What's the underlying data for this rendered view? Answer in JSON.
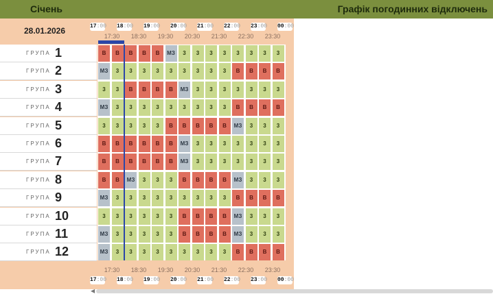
{
  "header": {
    "month": "Січень",
    "title": "Графік погодинних відключень"
  },
  "date": "28.01.2026",
  "hours": [
    {
      "h": "17",
      "m": ":00"
    },
    {
      "h": "18",
      "m": ":00"
    },
    {
      "h": "19",
      "m": ":00"
    },
    {
      "h": "20",
      "m": ":00"
    },
    {
      "h": "21",
      "m": ":00"
    },
    {
      "h": "22",
      "m": ":00"
    },
    {
      "h": "23",
      "m": ":00"
    },
    {
      "h": "00",
      "m": ":00"
    }
  ],
  "half_hours": [
    "17:30",
    "18:30",
    "19:30",
    "20:30",
    "21:30",
    "22:30",
    "23:30"
  ],
  "group_word": "ГРУПА",
  "groups": [
    {
      "num": "1",
      "cells": [
        "В",
        "В",
        "В",
        "В",
        "В",
        "МЗ",
        "3",
        "3",
        "3",
        "3",
        "3",
        "3",
        "3",
        "3"
      ]
    },
    {
      "num": "2",
      "cells": [
        "МЗ",
        "3",
        "3",
        "3",
        "3",
        "3",
        "3",
        "3",
        "3",
        "3",
        "В",
        "В",
        "В",
        "В"
      ]
    },
    {
      "num": "3",
      "cells": [
        "3",
        "3",
        "В",
        "В",
        "В",
        "В",
        "МЗ",
        "3",
        "3",
        "3",
        "3",
        "3",
        "3",
        "3"
      ]
    },
    {
      "num": "4",
      "cells": [
        "МЗ",
        "3",
        "3",
        "3",
        "3",
        "3",
        "3",
        "3",
        "3",
        "3",
        "В",
        "В",
        "В",
        "В"
      ]
    },
    {
      "num": "5",
      "cells": [
        "3",
        "3",
        "3",
        "3",
        "3",
        "В",
        "В",
        "В",
        "В",
        "В",
        "МЗ",
        "3",
        "3",
        "3"
      ]
    },
    {
      "num": "6",
      "cells": [
        "В",
        "В",
        "В",
        "В",
        "В",
        "В",
        "МЗ",
        "3",
        "3",
        "3",
        "3",
        "3",
        "3",
        "3"
      ]
    },
    {
      "num": "7",
      "cells": [
        "В",
        "В",
        "В",
        "В",
        "В",
        "В",
        "МЗ",
        "3",
        "3",
        "3",
        "3",
        "3",
        "3",
        "3"
      ]
    },
    {
      "num": "8",
      "cells": [
        "В",
        "В",
        "МЗ",
        "3",
        "3",
        "3",
        "В",
        "В",
        "В",
        "В",
        "МЗ",
        "3",
        "3",
        "3"
      ]
    },
    {
      "num": "9",
      "cells": [
        "МЗ",
        "3",
        "3",
        "3",
        "3",
        "3",
        "3",
        "3",
        "3",
        "3",
        "В",
        "В",
        "В",
        "В"
      ]
    },
    {
      "num": "10",
      "cells": [
        "3",
        "3",
        "3",
        "3",
        "3",
        "3",
        "В",
        "В",
        "В",
        "В",
        "МЗ",
        "3",
        "3",
        "3"
      ]
    },
    {
      "num": "11",
      "cells": [
        "МЗ",
        "3",
        "3",
        "3",
        "3",
        "3",
        "В",
        "В",
        "В",
        "В",
        "МЗ",
        "3",
        "3",
        "3"
      ]
    },
    {
      "num": "12",
      "cells": [
        "МЗ",
        "3",
        "3",
        "3",
        "3",
        "3",
        "3",
        "3",
        "3",
        "3",
        "В",
        "В",
        "В",
        "В"
      ]
    }
  ],
  "colors": {
    "on": "#c9d98e",
    "off": "#df6f5e",
    "maybe": "#b7c1ca",
    "now": "#2b46a8"
  }
}
